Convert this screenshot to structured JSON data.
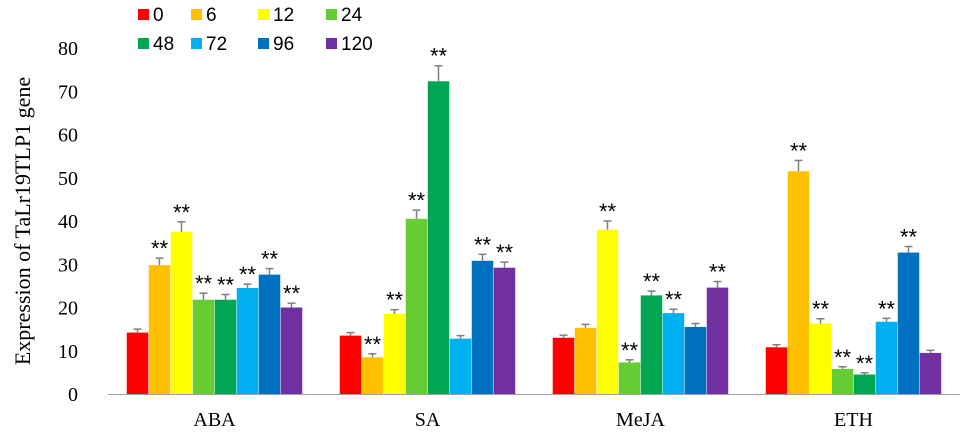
{
  "chart_data": {
    "type": "bar",
    "title": "",
    "xlabel": "",
    "ylabel": "Expression of TaLr19TLP1 gene",
    "ylim": [
      0,
      80
    ],
    "yticks": [
      "0",
      "10",
      "20",
      "30",
      "40",
      "50",
      "60",
      "70",
      "80"
    ],
    "categories": [
      "ABA",
      "SA",
      "MeJA",
      "ETH"
    ],
    "legend_position": "top-left",
    "grid": false,
    "series": [
      {
        "name": "0",
        "color": "#ff0000",
        "values": [
          14.2,
          13.5,
          13.0,
          10.8
        ],
        "errors": [
          0.8,
          0.7,
          0.6,
          0.6
        ],
        "sig": [
          "",
          "",
          "",
          ""
        ]
      },
      {
        "name": "6",
        "color": "#ffc000",
        "values": [
          29.8,
          8.5,
          15.3,
          51.5
        ],
        "errors": [
          1.6,
          0.8,
          0.8,
          2.5
        ],
        "sig": [
          "**",
          "**",
          "",
          "**"
        ]
      },
      {
        "name": "12",
        "color": "#ffff00",
        "values": [
          37.5,
          18.5,
          38.0,
          16.3
        ],
        "errors": [
          2.3,
          1.0,
          2.0,
          1.1
        ],
        "sig": [
          "**",
          "**",
          "**",
          "**"
        ]
      },
      {
        "name": "24",
        "color": "#66cc33",
        "values": [
          21.8,
          40.5,
          7.3,
          5.8
        ],
        "errors": [
          1.5,
          2.0,
          0.6,
          0.5
        ],
        "sig": [
          "**",
          "**",
          "**",
          "**"
        ]
      },
      {
        "name": "48",
        "color": "#00a651",
        "values": [
          21.8,
          72.3,
          22.8,
          4.5
        ],
        "errors": [
          1.2,
          3.6,
          1.0,
          0.4
        ],
        "sig": [
          "**",
          "**",
          "**",
          "**"
        ]
      },
      {
        "name": "72",
        "color": "#00b0f0",
        "values": [
          24.5,
          12.8,
          18.7,
          16.7
        ],
        "errors": [
          0.9,
          0.7,
          0.9,
          0.8
        ],
        "sig": [
          "**",
          "",
          "**",
          "**"
        ]
      },
      {
        "name": "96",
        "color": "#0070c0",
        "values": [
          27.6,
          30.8,
          15.5,
          32.7
        ],
        "errors": [
          1.4,
          1.5,
          0.8,
          1.4
        ],
        "sig": [
          "**",
          "**",
          "",
          "**"
        ]
      },
      {
        "name": "120",
        "color": "#7030a0",
        "values": [
          20.0,
          29.2,
          24.6,
          9.5
        ],
        "errors": [
          1.0,
          1.3,
          1.4,
          0.6
        ],
        "sig": [
          "**",
          "**",
          "**",
          ""
        ]
      }
    ]
  }
}
